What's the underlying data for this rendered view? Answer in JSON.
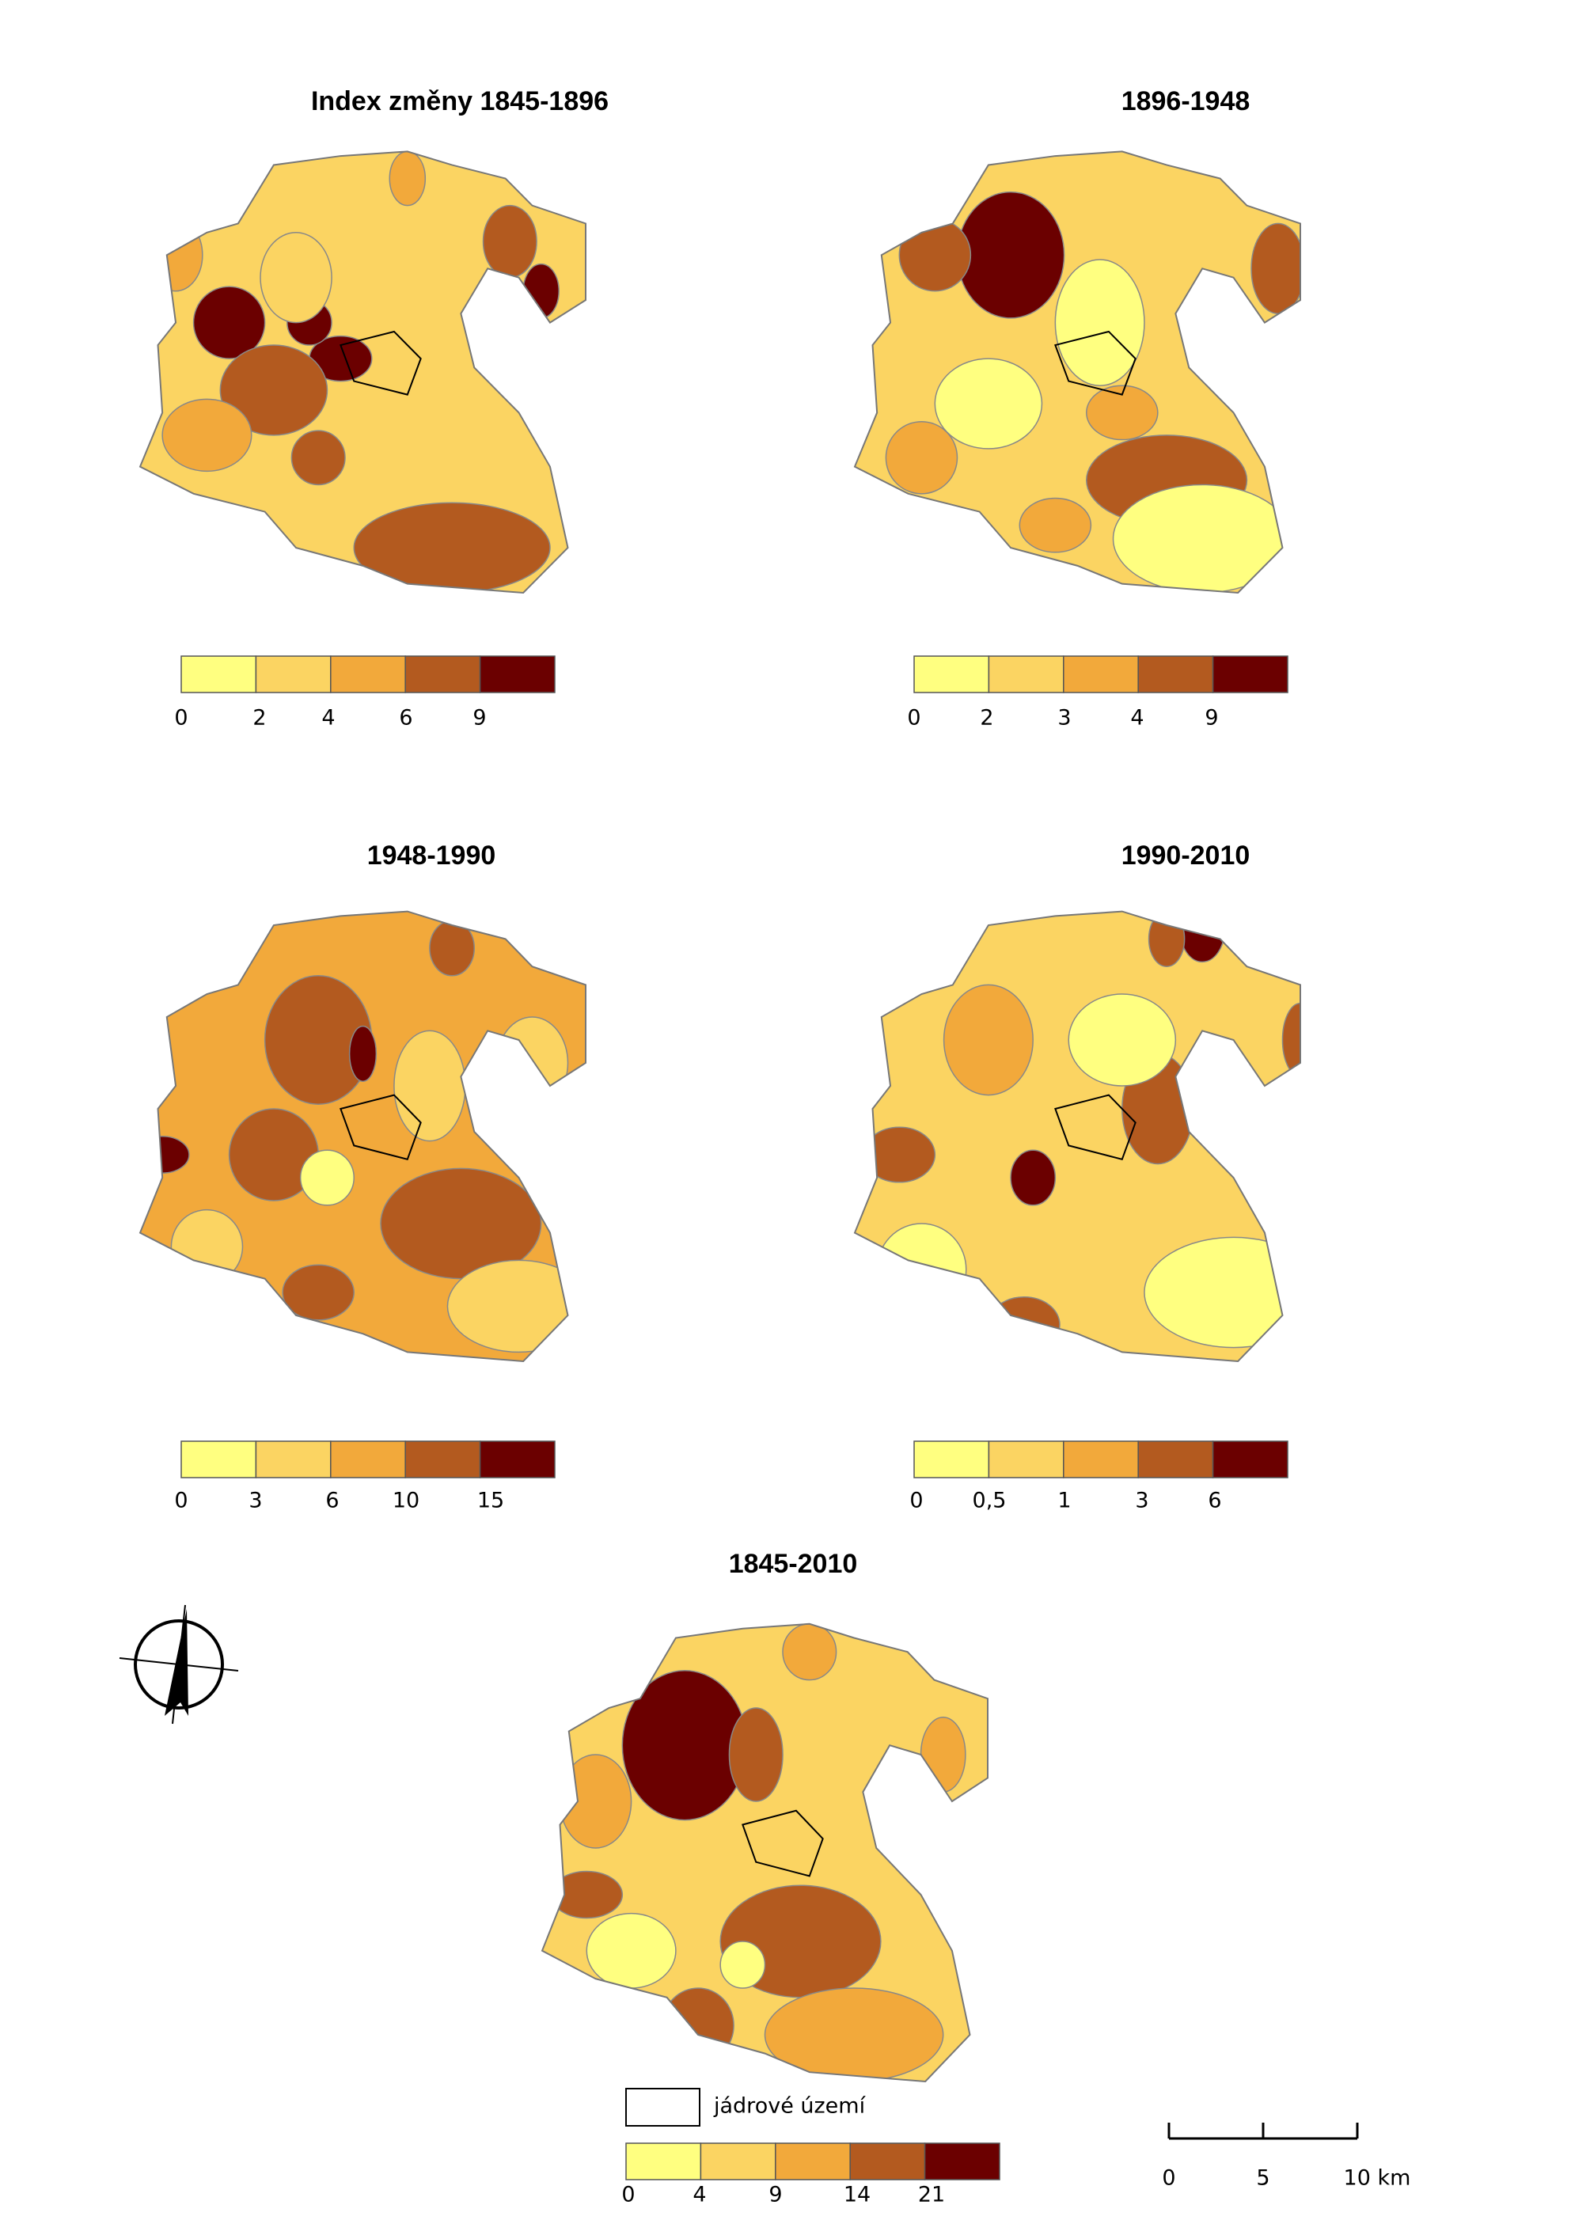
{
  "colors": [
    "#ffff80",
    "#fbd462",
    "#f2a93b",
    "#b35a1f",
    "#6b0000"
  ],
  "maps": [
    {
      "title": "Index změny 1845-1896",
      "legend_labels": [
        "0",
        "2",
        "4",
        "6",
        "9"
      ]
    },
    {
      "title": "1896-1948",
      "legend_labels": [
        "0",
        "2",
        "3",
        "4",
        "9"
      ]
    },
    {
      "title": "1948-1990",
      "legend_labels": [
        "0",
        "3",
        "6",
        "10",
        "15"
      ]
    },
    {
      "title": "1990-2010",
      "legend_labels": [
        "0",
        "0,5",
        "1",
        "3",
        "6"
      ]
    },
    {
      "title": "1845-2010",
      "legend_labels": [
        "0",
        "4",
        "9",
        "14",
        "21"
      ]
    }
  ],
  "core_area_label": "jádrové území",
  "scale_bar": {
    "labels": [
      "0",
      "5",
      "10 km"
    ]
  }
}
